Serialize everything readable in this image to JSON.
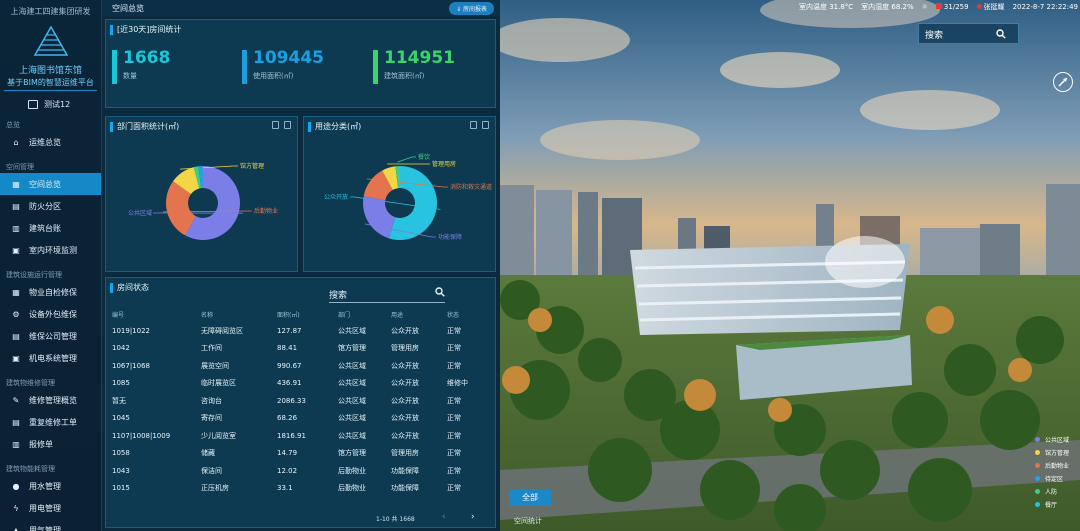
{
  "sidebar": {
    "org": "上海建工四建集团研发",
    "title": "上海图书馆东馆",
    "subtitle": "基于BIM的智慧运维平台",
    "user": "测试12",
    "groups": [
      {
        "label": "总览",
        "items": [
          {
            "label": "运维总览",
            "glyph": "⌂"
          }
        ]
      },
      {
        "label": "空间管理",
        "items": [
          {
            "label": "空间总览",
            "glyph": "▦",
            "active": true
          },
          {
            "label": "防火分区",
            "glyph": "▤"
          },
          {
            "label": "建筑台账",
            "glyph": "▥"
          },
          {
            "label": "室内环境监测",
            "glyph": "▣"
          }
        ]
      },
      {
        "label": "建筑设施运行管理",
        "items": [
          {
            "label": "物业自检修保",
            "glyph": "▦"
          },
          {
            "label": "设备外包维保",
            "glyph": "⚙"
          },
          {
            "label": "维保公司管理",
            "glyph": "▤"
          },
          {
            "label": "机电系统管理",
            "glyph": "▣"
          }
        ]
      },
      {
        "label": "建筑物维修管理",
        "items": [
          {
            "label": "维修管理概览",
            "glyph": "✎"
          },
          {
            "label": "重复维修工单",
            "glyph": "▤"
          },
          {
            "label": "报修单",
            "glyph": "▥"
          }
        ]
      },
      {
        "label": "建筑物能耗管理",
        "items": [
          {
            "label": "用水管理",
            "glyph": "●"
          },
          {
            "label": "用电管理",
            "glyph": "ϟ"
          },
          {
            "label": "用气管理",
            "glyph": "▲"
          }
        ]
      }
    ]
  },
  "topbar": {
    "title": "空间总览",
    "export_label": "⇓ 房间报表"
  },
  "stats_panel": {
    "title": "[近30天]房间统计",
    "stats": [
      {
        "value": "1668",
        "label": "数量",
        "color": "#19c8d8"
      },
      {
        "value": "109445",
        "label": "使用面积(㎡)",
        "color": "#1a9fe0"
      },
      {
        "value": "114951",
        "label": "建筑面积(㎡)",
        "color": "#3bd36c"
      }
    ]
  },
  "dept_panel": {
    "title": "部门面积统计(㎡)",
    "chart_data": {
      "type": "pie",
      "slices": [
        {
          "label": "公共区域",
          "value": 58,
          "color": "#7b7ee6"
        },
        {
          "label": "后勤物业",
          "value": 27,
          "color": "#e3744e"
        },
        {
          "label": "馆方管理",
          "value": 11,
          "color": "#f3d548"
        },
        {
          "label": "",
          "value": 2,
          "color": "#3ad08a"
        },
        {
          "label": "",
          "value": 2,
          "color": "#2f9de6"
        }
      ]
    }
  },
  "usage_panel": {
    "title": "用途分类(㎡)",
    "chart_data": {
      "type": "pie",
      "slices": [
        {
          "label": "公众开放",
          "value": 55,
          "color": "#27c3df"
        },
        {
          "label": "功能保障",
          "value": 23,
          "color": "#7b7ee6"
        },
        {
          "label": "消防和救灾通道",
          "value": 14,
          "color": "#e3744e"
        },
        {
          "label": "管理用房",
          "value": 6,
          "color": "#f3d548"
        },
        {
          "label": "餐饮",
          "value": 2,
          "color": "#3ad08a"
        }
      ]
    }
  },
  "room_panel": {
    "title": "房间状态",
    "search_placeholder": "搜索",
    "columns": [
      "编号",
      "名称",
      "面积(㎡)",
      "部门",
      "用途",
      "状态"
    ],
    "rows": [
      [
        "1019|1022",
        "无障碍阅览区",
        "127.87",
        "公共区域",
        "公众开放",
        "正常"
      ],
      [
        "1042",
        "工作间",
        "88.41",
        "馆方管理",
        "管理用房",
        "正常"
      ],
      [
        "1067|1068",
        "展览空间",
        "990.67",
        "公共区域",
        "公众开放",
        "正常"
      ],
      [
        "1085",
        "临时展览区",
        "436.91",
        "公共区域",
        "公众开放",
        "维修中"
      ],
      [
        "暂无",
        "咨询台",
        "2086.33",
        "公共区域",
        "公众开放",
        "正常"
      ],
      [
        "1045",
        "寄存间",
        "68.26",
        "公共区域",
        "公众开放",
        "正常"
      ],
      [
        "1107|1008|1009",
        "少儿阅览室",
        "1816.91",
        "公共区域",
        "公众开放",
        "正常"
      ],
      [
        "1058",
        "储藏",
        "14.79",
        "馆方管理",
        "管理用房",
        "正常"
      ],
      [
        "1043",
        "保洁间",
        "12.02",
        "后勤物业",
        "功能保障",
        "正常"
      ],
      [
        "1015",
        "正压机房",
        "33.1",
        "后勤物业",
        "功能保障",
        "正常"
      ]
    ],
    "pager": "1-10 共 1668",
    "prev": "‹",
    "next": "›"
  },
  "scene": {
    "hud": {
      "outdoor_temp": "室内温度 31.8°C",
      "humidity": "室内湿度 68.2%",
      "weather": "☼",
      "alarm": "31/259",
      "user": "张挺耀",
      "datetime": "2022-8-7 22:22:49"
    },
    "search_placeholder": "搜索",
    "all_button": "全部",
    "floor_label": "空间统计",
    "legend": [
      {
        "label": "公共区域",
        "color": "#7b7ee6"
      },
      {
        "label": "馆方管理",
        "color": "#f3d548"
      },
      {
        "label": "后勤物业",
        "color": "#e3744e"
      },
      {
        "label": "待定区",
        "color": "#2f9de6"
      },
      {
        "label": "人防",
        "color": "#3ad08a"
      },
      {
        "label": "餐厅",
        "color": "#27c3df"
      }
    ]
  }
}
